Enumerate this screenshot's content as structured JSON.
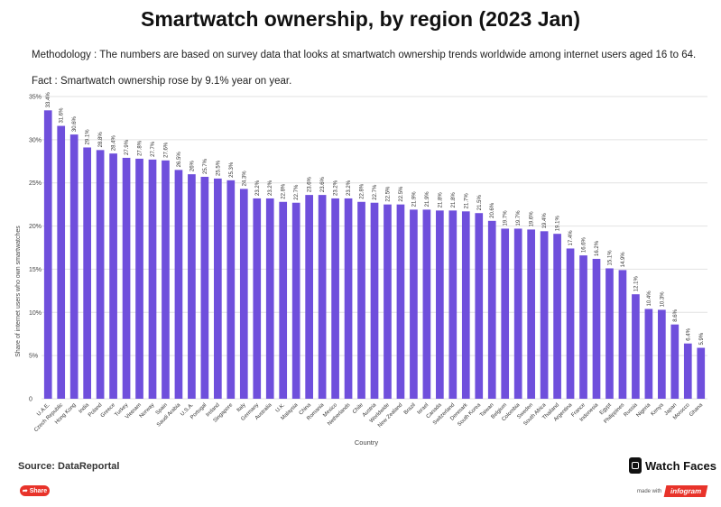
{
  "title": "Smartwatch ownership, by region (2023 Jan)",
  "methodology": "Methodology : The numbers are based on survey data that looks at smartwatch ownership trends worldwide among internet users aged 16 to 64.",
  "fact": "Fact : Smartwatch ownership rose by 9.1% year on year.",
  "source": "Source: DataReportal",
  "brand": "Watch Faces",
  "share_label": "Share",
  "made_with_label": "made with",
  "made_with_brand": "infogram",
  "colors": {
    "bar": "#6f4fdc",
    "grid": "#e2e2e2",
    "share": "#e8332a"
  },
  "chart_data": {
    "type": "bar",
    "xlabel": "Country",
    "ylabel": "Share of internet users who own smartwatches",
    "ylim": [
      0,
      35
    ],
    "yticks": [
      0,
      5,
      10,
      15,
      20,
      25,
      30,
      35
    ],
    "ytick_labels": [
      "0",
      "5%",
      "10%",
      "15%",
      "20%",
      "25%",
      "30%",
      "35%"
    ],
    "grid": true,
    "categories": [
      "U.A.E.",
      "Czech Republic",
      "Hong Kong",
      "India",
      "Poland",
      "Greece",
      "Turkey",
      "Vietnam",
      "Norway",
      "Spain",
      "Saudi Arabia",
      "U.S.A.",
      "Portugal",
      "Ireland",
      "Singapore",
      "Italy",
      "Germany",
      "Australia",
      "U.K.",
      "Malaysia",
      "China",
      "Romania",
      "Mexico",
      "Netherlands",
      "Chile",
      "Austria",
      "Worldwide",
      "New Zealand",
      "Brazil",
      "Israel",
      "Canada",
      "Switzerland",
      "Denmark",
      "South Korea",
      "Taiwan",
      "Belgium",
      "Colombia",
      "Sweden",
      "South Africa",
      "Thailand",
      "Argentina",
      "France",
      "Indonesia",
      "Egypt",
      "Philippines",
      "Russia",
      "Nigeria",
      "Kenya",
      "Japan",
      "Morocco",
      "Ghana"
    ],
    "values": [
      33.4,
      31.6,
      30.6,
      29.1,
      28.8,
      28.4,
      27.9,
      27.8,
      27.7,
      27.6,
      26.5,
      26,
      25.7,
      25.5,
      25.3,
      24.3,
      23.2,
      23.2,
      22.8,
      22.7,
      23.6,
      23.6,
      23.2,
      23.2,
      22.8,
      22.7,
      22.5,
      22.5,
      21.9,
      21.9,
      21.8,
      21.8,
      21.7,
      21.5,
      20.6,
      19.7,
      19.7,
      19.6,
      19.4,
      19.1,
      17.4,
      16.6,
      16.2,
      15.1,
      14.9,
      12.1,
      10.4,
      10.3,
      8.6,
      6.4,
      5.9
    ],
    "value_labels": [
      "33.4%",
      "31.6%",
      "30.6%",
      "29.1%",
      "28.8%",
      "28.4%",
      "27.9%",
      "27.8%",
      "27.7%",
      "27.6%",
      "26.5%",
      "26%",
      "25.7%",
      "25.5%",
      "25.3%",
      "24.3%",
      "23.2%",
      "23.2%",
      "22.8%",
      "22.7%",
      "23.6%",
      "23.6%",
      "23.2%",
      "23.2%",
      "22.8%",
      "22.7%",
      "22.5%",
      "22.5%",
      "21.9%",
      "21.9%",
      "21.8%",
      "21.8%",
      "21.7%",
      "21.5%",
      "20.6%",
      "19.7%",
      "19.7%",
      "19.6%",
      "19.4%",
      "19.1%",
      "17.4%",
      "16.6%",
      "16.2%",
      "15.1%",
      "14.9%",
      "12.1%",
      "10.4%",
      "10.3%",
      "8.6%",
      "6.4%",
      "5.9%"
    ]
  }
}
